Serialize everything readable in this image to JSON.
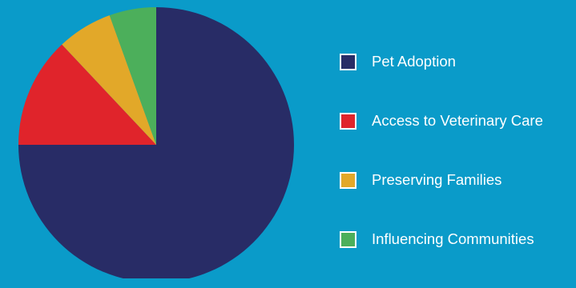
{
  "background": "#0a9bc9",
  "chart_data": {
    "type": "pie",
    "title": "",
    "start_angle_deg": 0,
    "direction": "clockwise",
    "slices": [
      {
        "label": "Pet Adoption",
        "value": 75,
        "color": "#282c66"
      },
      {
        "label": "Access to Veterinary Care",
        "value": 13,
        "color": "#e0242b"
      },
      {
        "label": "Preserving Families",
        "value": 6.5,
        "color": "#e2a829"
      },
      {
        "label": "Influencing Communities",
        "value": 5.5,
        "color": "#4caf5b"
      }
    ],
    "legend_position": "right"
  },
  "legend": {
    "items": [
      {
        "label": "Pet Adoption",
        "color": "#282c66"
      },
      {
        "label": "Access to Veterinary Care",
        "color": "#e0242b"
      },
      {
        "label": "Preserving Families",
        "color": "#e2a829"
      },
      {
        "label": "Influencing Communities",
        "color": "#4caf5b"
      }
    ]
  }
}
